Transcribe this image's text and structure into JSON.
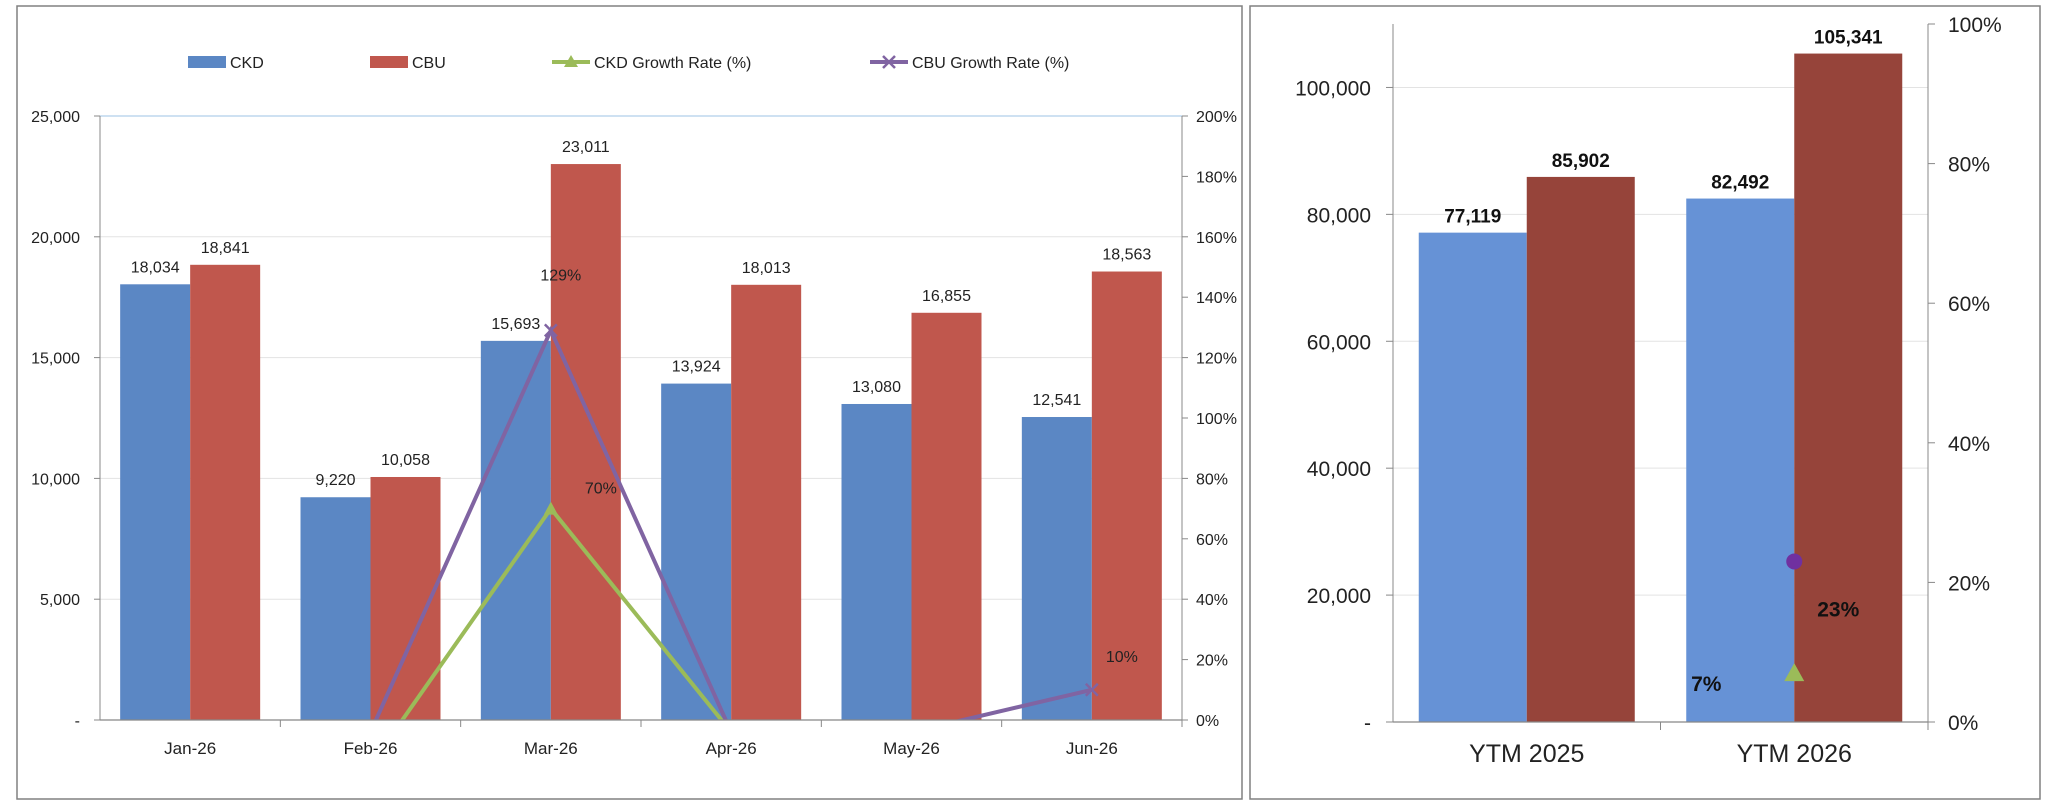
{
  "chart_data": [
    {
      "type": "bar",
      "categories": [
        "Jan-26",
        "Feb-26",
        "Mar-26",
        "Apr-26",
        "May-26",
        "Jun-26"
      ],
      "series": [
        {
          "name": "CKD",
          "kind": "bar",
          "axis": "left",
          "color": "#5b87c4",
          "values": [
            18034,
            9220,
            15693,
            13924,
            13080,
            12541
          ],
          "labels": [
            "18,034",
            "9,220",
            "15,693",
            "13,924",
            "13,080",
            "12,541"
          ]
        },
        {
          "name": "CBU",
          "kind": "bar",
          "axis": "left",
          "color": "#c0574d",
          "values": [
            18841,
            10058,
            23011,
            18013,
            16855,
            18563
          ],
          "labels": [
            "18,841",
            "10,058",
            "23,011",
            "18,013",
            "16,855",
            "18,563"
          ]
        },
        {
          "name": "CKD Growth Rate (%)",
          "kind": "line",
          "marker": "triangle",
          "axis": "right",
          "color": "#9bbb59",
          "values": [
            null,
            -15,
            70,
            -4,
            null,
            null
          ]
        },
        {
          "name": "CBU Growth Rate (%)",
          "kind": "line",
          "marker": "x",
          "axis": "right",
          "color": "#8064a2",
          "values": [
            null,
            -4,
            129,
            -4,
            -4,
            10
          ]
        }
      ],
      "annotations": [
        "129%",
        "70%",
        "10%"
      ],
      "ylim": [
        0,
        25000
      ],
      "yticks": [
        "25,000",
        "20,000",
        "15,000",
        "10,000",
        "5,000",
        "-"
      ],
      "y2lim": [
        0,
        200
      ],
      "y2ticks": [
        "200%",
        "180%",
        "160%",
        "140%",
        "120%",
        "100%",
        "80%",
        "60%",
        "40%",
        "20%",
        "0%"
      ],
      "grid": true,
      "legend": "top"
    },
    {
      "type": "bar",
      "categories": [
        "YTM 2025",
        "YTM 2026"
      ],
      "series": [
        {
          "name": "CKD",
          "kind": "bar",
          "axis": "left",
          "color": "#6692d6",
          "values": [
            77119,
            82492
          ],
          "labels": [
            "77,119",
            "82,492"
          ]
        },
        {
          "name": "CBU",
          "kind": "bar",
          "axis": "left",
          "color": "#96443a",
          "values": [
            85902,
            105341
          ],
          "labels": [
            "85,902",
            "105,341"
          ]
        },
        {
          "name": "CBU Growth Rate (%)",
          "kind": "point",
          "marker": "circle",
          "axis": "right",
          "color": "#7030a0",
          "values": [
            null,
            23
          ],
          "label": "23%"
        },
        {
          "name": "CKD Growth Rate (%)",
          "kind": "point",
          "marker": "triangle",
          "axis": "right",
          "color": "#9bbb59",
          "values": [
            null,
            7
          ],
          "label": "7%"
        }
      ],
      "ylim": [
        0,
        110000
      ],
      "yticks": [
        "100,000",
        "80,000",
        "60,000",
        "40,000",
        "20,000",
        "-"
      ],
      "y2lim": [
        0,
        100
      ],
      "y2ticks": [
        "100%",
        "80%",
        "60%",
        "40%",
        "20%",
        "0%"
      ],
      "grid": true,
      "legend": "none"
    }
  ]
}
